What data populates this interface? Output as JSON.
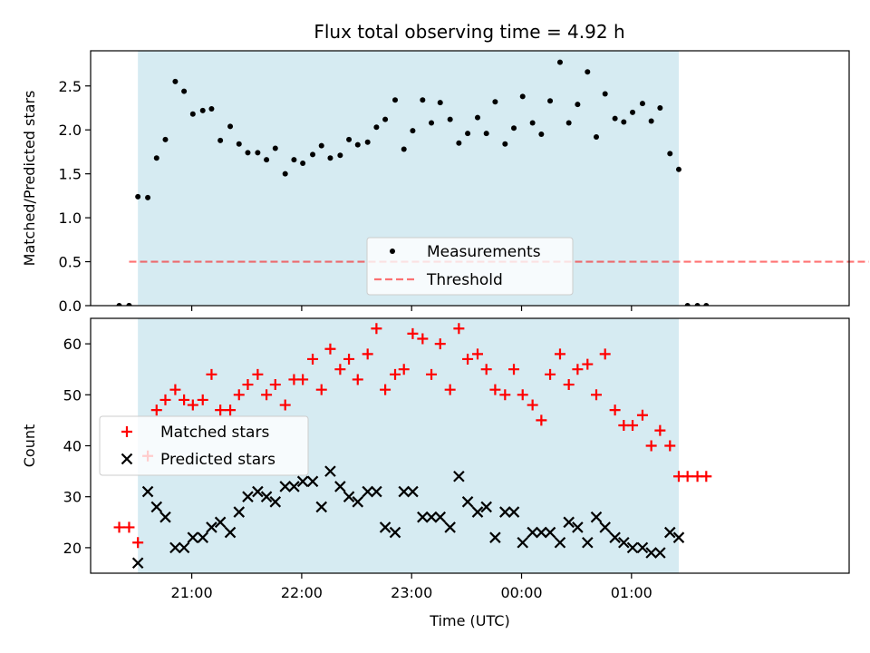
{
  "title": "Flux total observing time = 4.92 h",
  "colors": {
    "band": "#add8e6",
    "matched": "#ff0000",
    "predicted": "#000000",
    "threshold": "#ff0000",
    "measurement": "#000000"
  },
  "chart_data": [
    {
      "id": "top",
      "type": "scatter",
      "ylabel": "Matched/Predicted stars",
      "xlabel": "",
      "xlim": [
        20.08,
        26.98
      ],
      "ylim": [
        0,
        2.9
      ],
      "yticks": [
        "0.0",
        "0.5",
        "1.0",
        "1.5",
        "2.0",
        "2.5"
      ],
      "ytick_values": [
        0,
        0.5,
        1.0,
        1.5,
        2.0,
        2.5
      ],
      "shaded_region": [
        20.51,
        25.43
      ],
      "legend": {
        "position": "lower center",
        "entries": [
          "Measurements",
          "Threshold"
        ]
      },
      "series": [
        {
          "name": "Measurements",
          "x": [
            20.43,
            20.51,
            20.6,
            20.68,
            20.76,
            20.85,
            20.93,
            21.01,
            21.1,
            21.18,
            21.26,
            21.35,
            21.43,
            21.51,
            21.6,
            21.68,
            21.76,
            21.85,
            21.93,
            22.01,
            22.1,
            22.18,
            22.26,
            22.35,
            22.43,
            22.51,
            22.6,
            22.68,
            22.76,
            22.85,
            22.93,
            23.01,
            23.1,
            23.18,
            23.26,
            23.35,
            23.43,
            23.51,
            23.6,
            23.68,
            23.76,
            23.85,
            23.93,
            24.01,
            24.1,
            24.18,
            24.26,
            24.35,
            24.43,
            24.51,
            24.6,
            24.68,
            24.76,
            24.85,
            24.93,
            25.01,
            25.1,
            25.18,
            25.26,
            25.35,
            25.43
          ],
          "y": [
            0,
            1.24,
            1.23,
            1.68,
            1.89,
            2.55,
            2.44,
            2.18,
            2.22,
            2.24,
            1.88,
            2.04,
            1.84,
            1.74,
            1.74,
            1.66,
            1.79,
            1.5,
            1.66,
            1.62,
            1.72,
            1.82,
            1.68,
            1.71,
            1.89,
            1.83,
            1.86,
            2.03,
            2.12,
            2.34,
            1.78,
            1.99,
            2.34,
            2.08,
            2.31,
            2.12,
            1.85,
            1.96,
            2.14,
            1.96,
            2.32,
            1.84,
            2.02,
            2.38,
            2.08,
            1.95,
            2.33,
            2.77,
            2.08,
            2.29,
            2.66,
            1.92,
            2.41,
            2.13,
            2.09,
            2.2,
            2.3,
            2.1,
            2.25,
            1.73,
            1.55
          ]
        },
        {
          "name": "Threshold",
          "x": [
            20.43,
            27.16
          ],
          "y": [
            0.5,
            0.5
          ]
        }
      ],
      "zero_points_x": [
        20.34,
        20.43,
        25.51,
        25.6,
        25.68
      ]
    },
    {
      "id": "bottom",
      "type": "scatter",
      "ylabel": "Count",
      "xlabel": "Time (UTC)",
      "xlim": [
        20.08,
        26.98
      ],
      "ylim": [
        15,
        65
      ],
      "yticks": [
        "20",
        "30",
        "40",
        "50",
        "60"
      ],
      "ytick_values": [
        20,
        30,
        40,
        50,
        60
      ],
      "xticks": [
        "21:00",
        "22:00",
        "23:00",
        "00:00",
        "01:00"
      ],
      "xtick_values": [
        21,
        22,
        23,
        24,
        25
      ],
      "shaded_region": [
        20.51,
        25.43
      ],
      "legend": {
        "position": "center left",
        "entries": [
          "Matched stars",
          "Predicted stars"
        ]
      },
      "series": [
        {
          "name": "Matched stars",
          "x": [
            20.34,
            20.43,
            20.51,
            20.6,
            20.68,
            20.76,
            20.85,
            20.93,
            21.01,
            21.1,
            21.18,
            21.26,
            21.35,
            21.43,
            21.51,
            21.6,
            21.68,
            21.76,
            21.85,
            21.93,
            22.01,
            22.1,
            22.18,
            22.26,
            22.35,
            22.43,
            22.51,
            22.6,
            22.68,
            22.76,
            22.85,
            22.93,
            23.01,
            23.1,
            23.18,
            23.26,
            23.35,
            23.43,
            23.51,
            23.6,
            23.68,
            23.76,
            23.85,
            23.93,
            24.01,
            24.1,
            24.18,
            24.26,
            24.35,
            24.43,
            24.51,
            24.6,
            24.68,
            24.76,
            24.85,
            24.93,
            25.01,
            25.1,
            25.18,
            25.26,
            25.35,
            25.43,
            25.51,
            25.6,
            25.68
          ],
          "y": [
            24,
            24,
            21,
            38,
            47,
            49,
            51,
            49,
            48,
            49,
            54,
            47,
            47,
            50,
            52,
            54,
            50,
            52,
            48,
            53,
            53,
            57,
            51,
            59,
            55,
            57,
            53,
            58,
            63,
            51,
            54,
            55,
            62,
            61,
            54,
            60,
            51,
            63,
            57,
            58,
            55,
            51,
            50,
            55,
            50,
            48,
            45,
            54,
            58,
            52,
            55,
            56,
            50,
            58,
            47,
            44,
            44,
            46,
            40,
            43,
            40,
            34,
            34,
            34,
            34
          ]
        },
        {
          "name": "Predicted stars",
          "x": [
            20.51,
            20.6,
            20.68,
            20.76,
            20.85,
            20.93,
            21.01,
            21.1,
            21.18,
            21.26,
            21.35,
            21.43,
            21.51,
            21.6,
            21.68,
            21.76,
            21.85,
            21.93,
            22.01,
            22.1,
            22.18,
            22.26,
            22.35,
            22.43,
            22.51,
            22.6,
            22.68,
            22.76,
            22.85,
            22.93,
            23.01,
            23.1,
            23.18,
            23.26,
            23.35,
            23.43,
            23.51,
            23.6,
            23.68,
            23.76,
            23.85,
            23.93,
            24.01,
            24.1,
            24.18,
            24.26,
            24.35,
            24.43,
            24.51,
            24.6,
            24.68,
            24.76,
            24.85,
            24.93,
            25.01,
            25.1,
            25.18,
            25.26,
            25.35,
            25.43
          ],
          "y": [
            17,
            31,
            28,
            26,
            20,
            20,
            22,
            22,
            24,
            25,
            23,
            27,
            30,
            31,
            30,
            29,
            32,
            32,
            33,
            33,
            28,
            35,
            32,
            30,
            29,
            31,
            31,
            24,
            23,
            31,
            31,
            26,
            26,
            26,
            24,
            34,
            29,
            27,
            28,
            22,
            27,
            27,
            21,
            23,
            23,
            23,
            21,
            25,
            24,
            21,
            26,
            24,
            22,
            21,
            20,
            20,
            19,
            19,
            23,
            22
          ]
        }
      ]
    }
  ]
}
